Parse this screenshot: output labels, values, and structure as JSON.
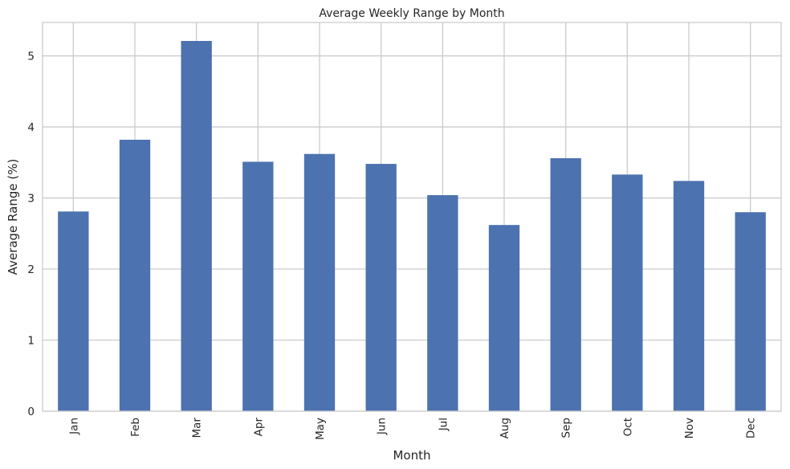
{
  "chart_data": {
    "type": "bar",
    "title": "Average Weekly Range by Month",
    "xlabel": "Month",
    "ylabel": "Average Range (%)",
    "categories": [
      "Jan",
      "Feb",
      "Mar",
      "Apr",
      "May",
      "Jun",
      "Jul",
      "Aug",
      "Sep",
      "Oct",
      "Nov",
      "Dec"
    ],
    "values": [
      2.81,
      3.82,
      5.21,
      3.51,
      3.62,
      3.48,
      3.04,
      2.62,
      3.56,
      3.33,
      3.24,
      2.8
    ],
    "ylim": [
      0,
      5.47
    ],
    "yticks": [
      0,
      1,
      2,
      3,
      4,
      5
    ],
    "grid": true,
    "legend": "none",
    "bar_color": "#4c72b0",
    "grid_color": "#cccccc",
    "spine_color": "#cccccc"
  }
}
